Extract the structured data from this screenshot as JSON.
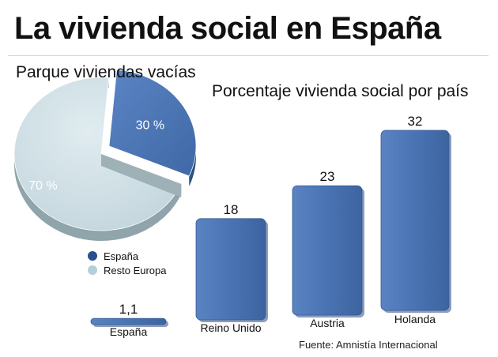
{
  "title": "La vivienda social en España",
  "source": "Fuente: Amnistía Internacional",
  "colors": {
    "blue": "#4a73b3",
    "light": "#c6d9df"
  },
  "chart_data": [
    {
      "type": "pie",
      "title": "Parque viviendas vacías",
      "slices": [
        {
          "label": "España",
          "value": 30,
          "display": "30 %"
        },
        {
          "label": "Resto Europa",
          "value": 70,
          "display": "70 %"
        }
      ],
      "legend": [
        "España",
        "Resto Europa"
      ]
    },
    {
      "type": "bar",
      "title": "Porcentaje vivienda social por país",
      "categories": [
        "España",
        "Reino Unido",
        "Austria",
        "Holanda"
      ],
      "values": [
        1.1,
        18,
        23,
        32
      ],
      "value_labels": [
        "1,1",
        "18",
        "23",
        "32"
      ],
      "ylim": [
        0,
        32
      ]
    }
  ]
}
